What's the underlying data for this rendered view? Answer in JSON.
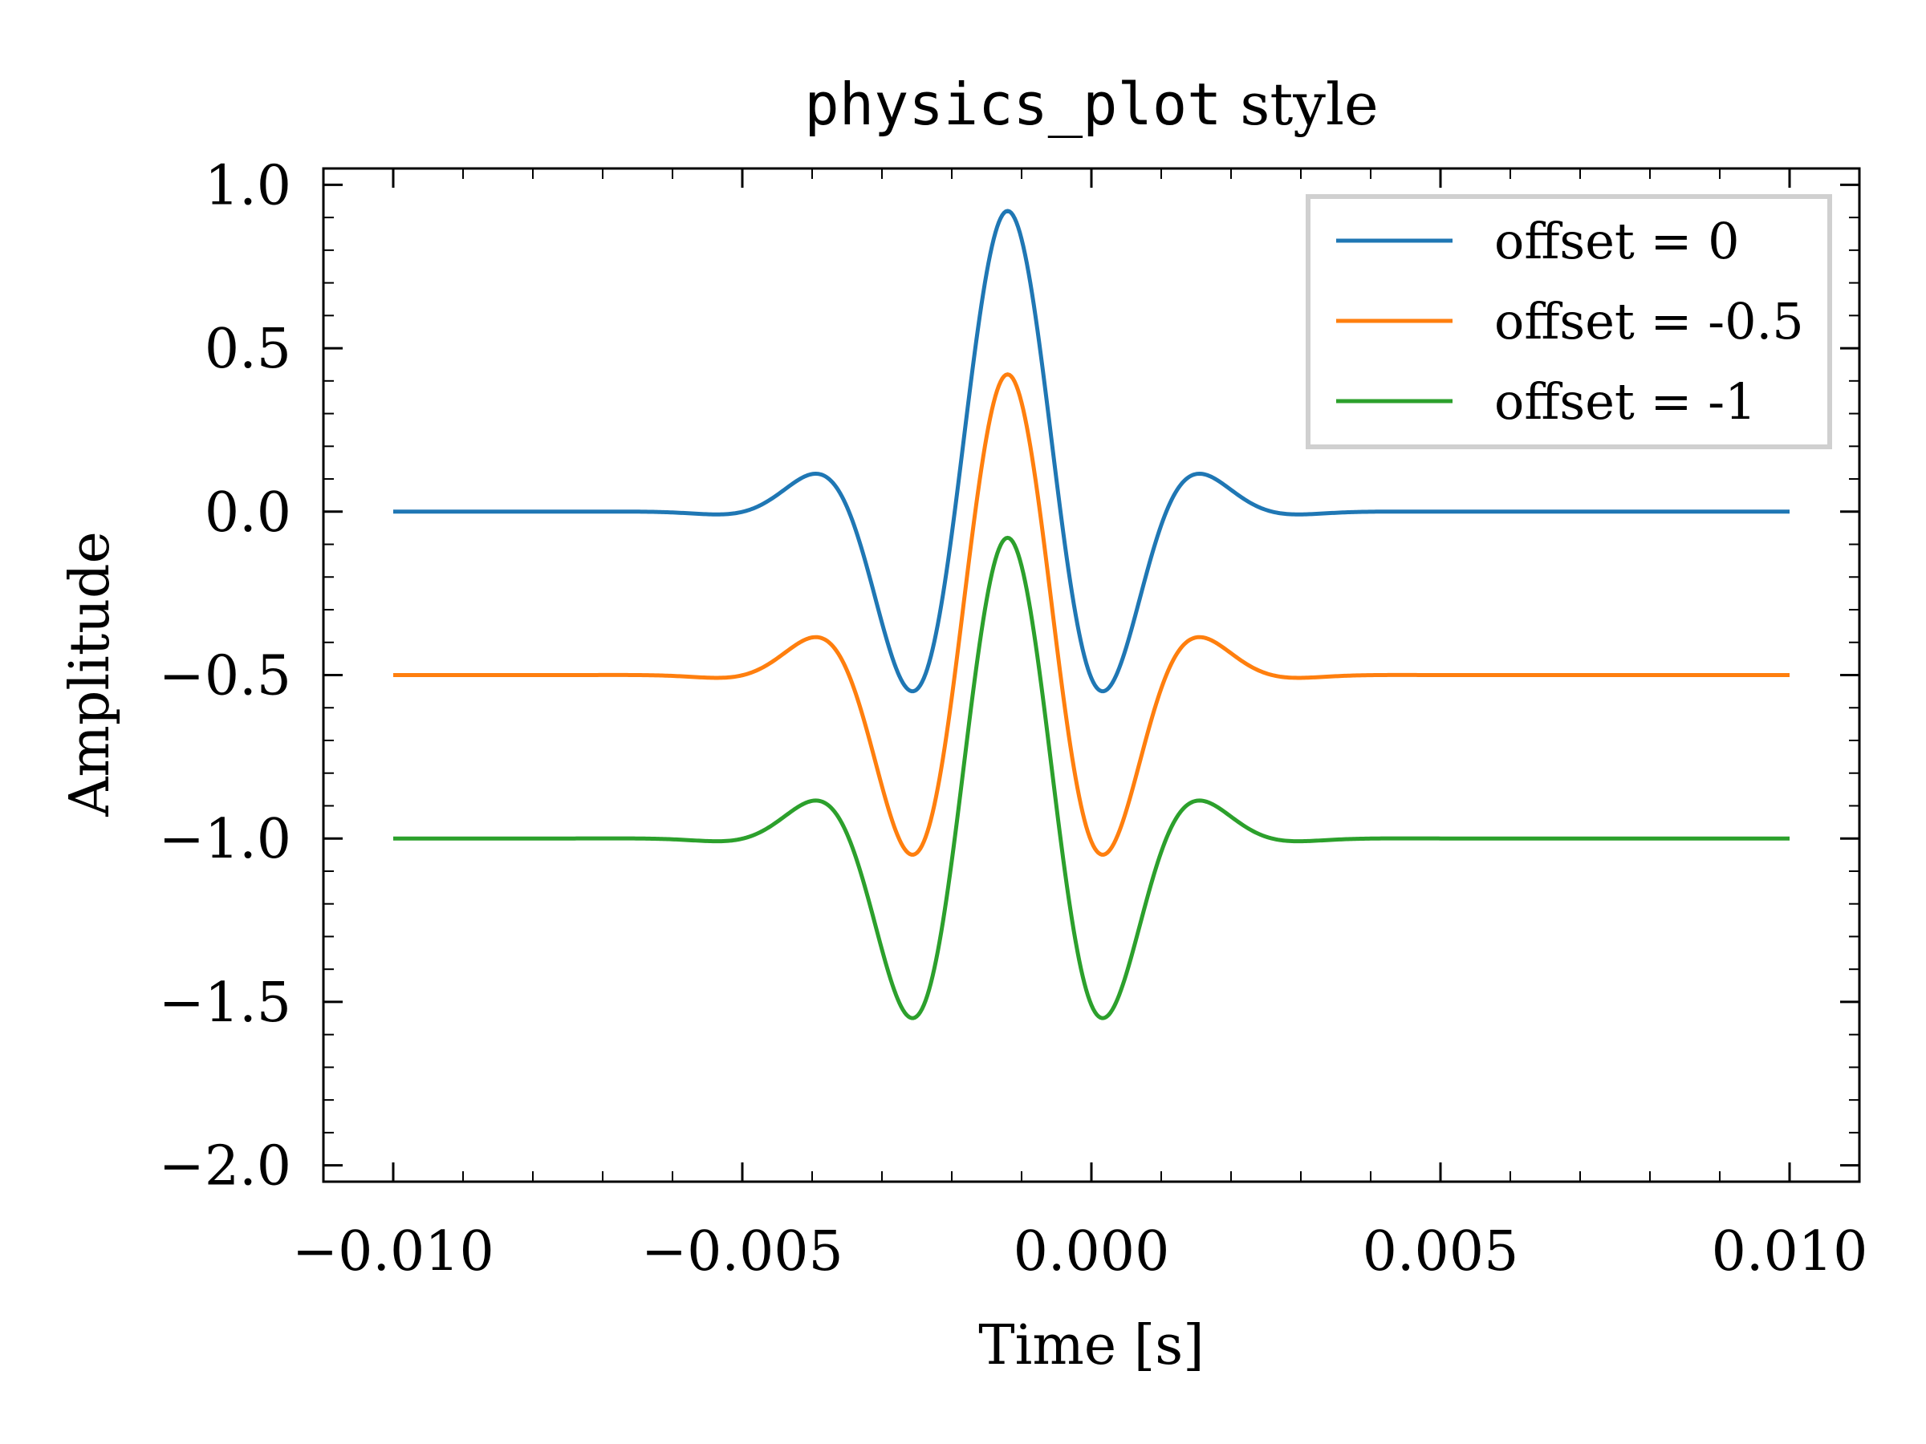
{
  "chart_data": {
    "type": "line",
    "title_code": "physics_plot",
    "title_rest": " style",
    "xlabel": "Time [s]",
    "ylabel": "Amplitude",
    "xlim": [
      -0.011,
      0.011
    ],
    "ylim": [
      -2.05,
      1.05
    ],
    "xticks": [
      -0.01,
      -0.005,
      0.0,
      0.005,
      0.01
    ],
    "xtick_labels": [
      "−0.010",
      "−0.005",
      "0.000",
      "0.005",
      "0.010"
    ],
    "yticks": [
      1.0,
      0.5,
      0.0,
      -0.5,
      -1.0,
      -1.5,
      -2.0
    ],
    "ytick_labels": [
      "1.0",
      "0.5",
      "0.0",
      "−0.5",
      "−1.0",
      "−1.5",
      "−2.0"
    ],
    "x_minor_step": 0.001,
    "y_minor_step": 0.1,
    "legend_position": "top-right",
    "wavelet": {
      "description_fields_only": false,
      "x_start": -0.01,
      "x_end": 0.01,
      "center": -0.0012,
      "frequency_hz": 330,
      "width_s": 0.002,
      "phase": 0.0
    },
    "series": [
      {
        "name": "offset = 0",
        "offset": 0,
        "color": "#1f77b4"
      },
      {
        "name": "offset = -0.5",
        "offset": -0.5,
        "color": "#ff7f0e"
      },
      {
        "name": "offset = -1",
        "offset": -1,
        "color": "#2ca02c"
      }
    ]
  }
}
